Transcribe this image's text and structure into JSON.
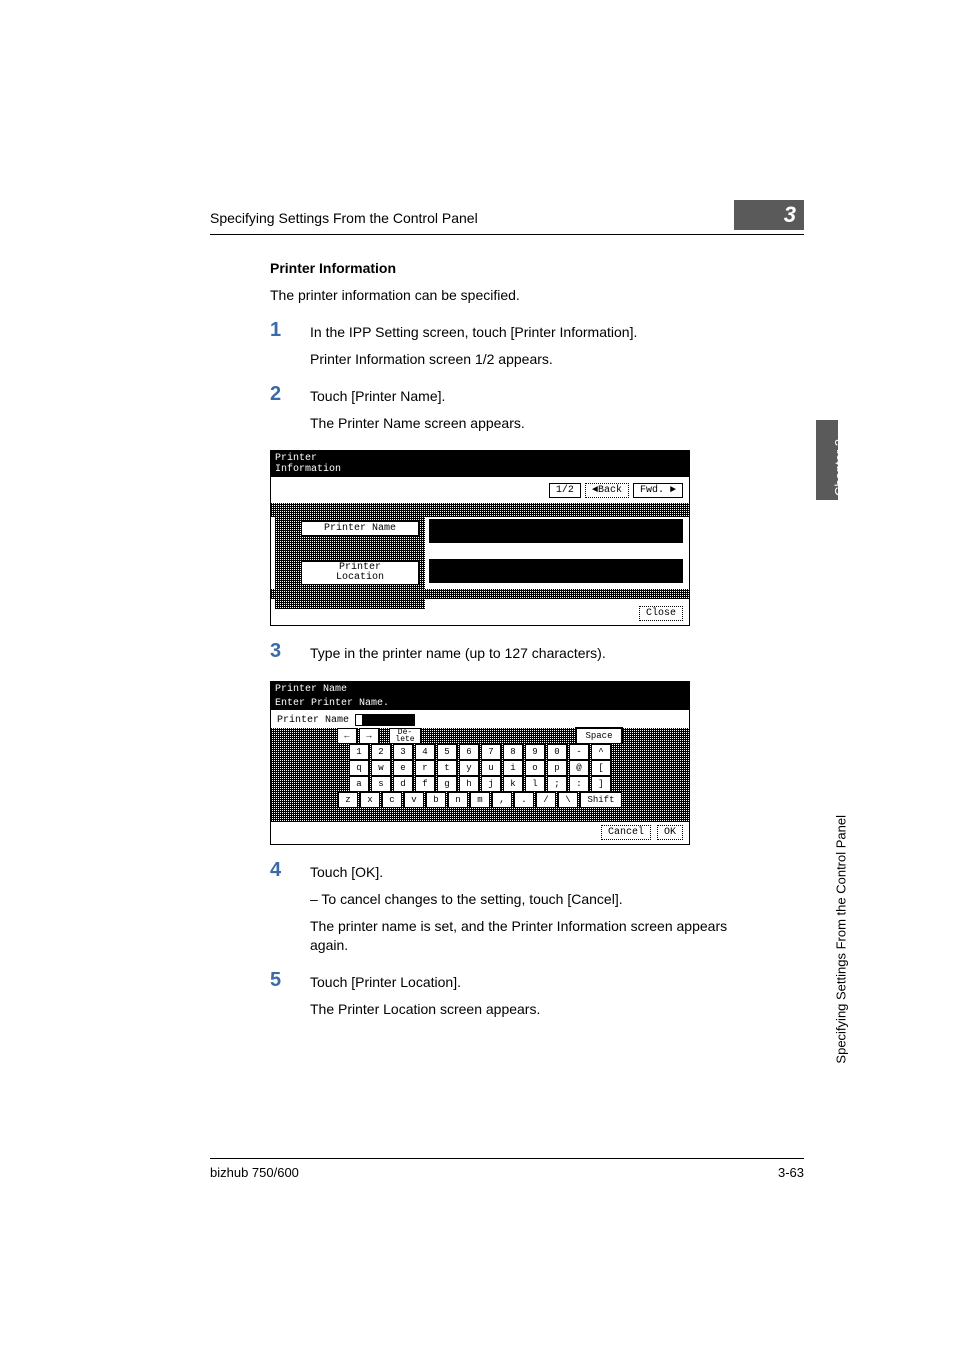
{
  "header": {
    "running_head": "Specifying Settings From the Control Panel",
    "chapter_num": "3"
  },
  "side": {
    "chapter_tab": "Chapter 3",
    "side_text": "Specifying Settings From the Control Panel"
  },
  "section": {
    "title": "Printer Information",
    "intro": "The printer information can be specified."
  },
  "steps": {
    "s1": {
      "num": "1",
      "line1": "In the IPP Setting screen, touch [Printer Information].",
      "line2": "Printer Information screen 1/2 appears."
    },
    "s2": {
      "num": "2",
      "line1": "Touch [Printer Name].",
      "line2": "The Printer Name screen appears."
    },
    "s3": {
      "num": "3",
      "line1": "Type in the printer name (up to 127 characters)."
    },
    "s4": {
      "num": "4",
      "line1": "Touch [OK].",
      "sub1": "–   To cancel changes to the setting, touch [Cancel].",
      "line2": "The printer name is set, and the Printer Information screen appears again."
    },
    "s5": {
      "num": "5",
      "line1": "Touch [Printer Location].",
      "line2": "The Printer Location screen appears."
    }
  },
  "panel1": {
    "title1": "Printer",
    "title2": "Information",
    "pager": "1/2",
    "back": "Back",
    "fwd": "Fwd.",
    "name_btn": "Printer Name",
    "loc_btn1": "Printer",
    "loc_btn2": "Location",
    "close": "Close"
  },
  "panel2": {
    "title": "Printer Name",
    "subtitle": "Enter Printer Name.",
    "lbl": "Printer Name",
    "del1": "De-",
    "del2": "lete",
    "space": "Space",
    "row1": [
      "1",
      "2",
      "3",
      "4",
      "5",
      "6",
      "7",
      "8",
      "9",
      "0",
      "-",
      "^"
    ],
    "row2": [
      "q",
      "w",
      "e",
      "r",
      "t",
      "y",
      "u",
      "i",
      "o",
      "p",
      "@",
      "["
    ],
    "row3": [
      "a",
      "s",
      "d",
      "f",
      "g",
      "h",
      "j",
      "k",
      "l",
      ";",
      ":",
      "]"
    ],
    "row4": [
      "z",
      "x",
      "c",
      "v",
      "b",
      "n",
      "m",
      ",",
      ".",
      "/",
      "\\"
    ],
    "shift": "Shift",
    "arrow_l": "←",
    "arrow_r": "→",
    "cancel": "Cancel",
    "ok": "OK"
  },
  "footer": {
    "left": "bizhub 750/600",
    "right": "3-63"
  }
}
